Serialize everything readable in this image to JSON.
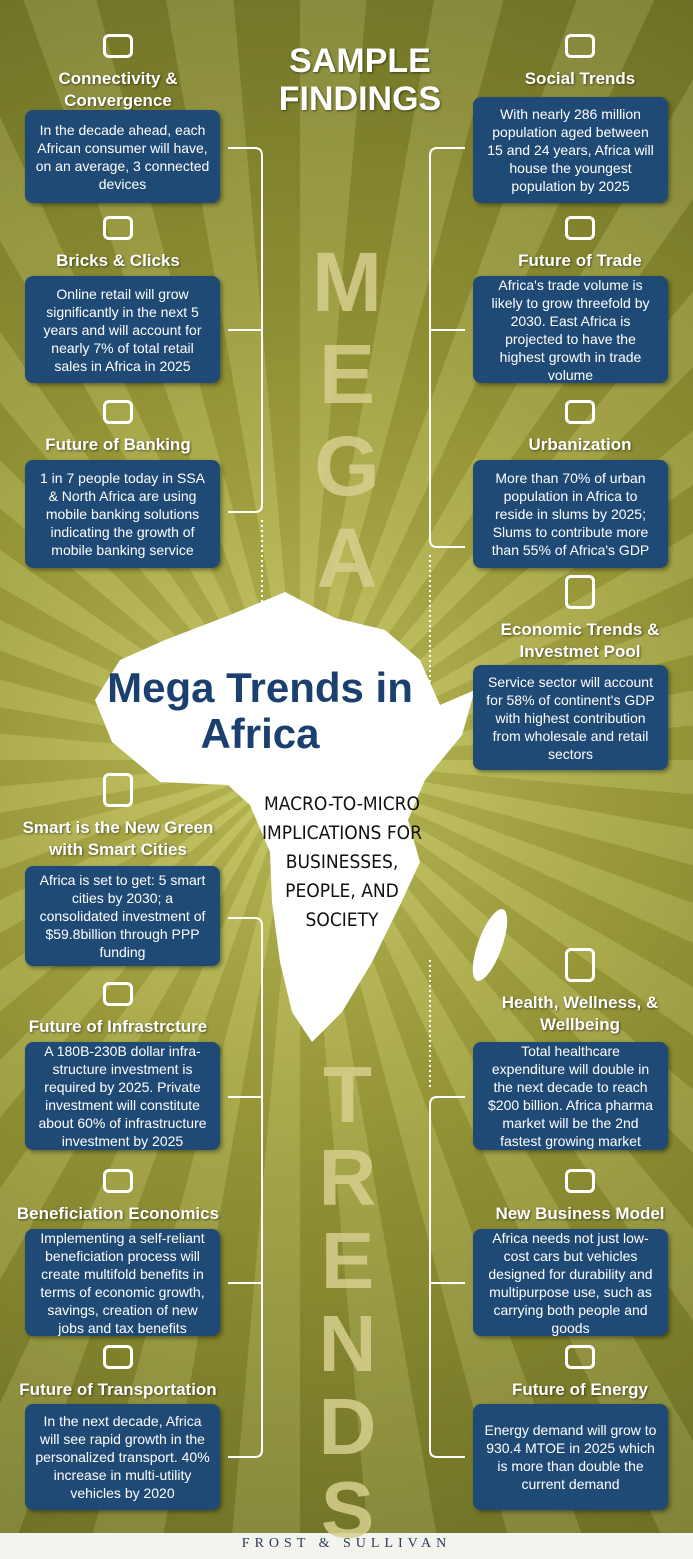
{
  "header": {
    "title": "SAMPLE FINDINGS"
  },
  "center": {
    "title": "Mega Trends in Africa",
    "subtitle": "MACRO-TO-MICRO IMPLICATIONS FOR BUSINESSES, PEOPLE, AND SOCIETY",
    "mega": "MEGA",
    "trends": "TRENDS"
  },
  "left": [
    {
      "heading": "Connectivity & Convergence",
      "text": "In the decade ahead, each African consumer will have, on an average, 3 connected devices"
    },
    {
      "heading": "Bricks & Clicks",
      "text": "Online retail will grow significantly in the next 5 years and will account for nearly 7% of total retail sales in Africa in 2025"
    },
    {
      "heading": "Future of Banking",
      "text": "1 in 7 people today in SSA & North Africa are using mobile banking solutions indicating the growth of mobile banking service"
    },
    {
      "heading": "Smart is the New Green with Smart Cities",
      "text": "Africa is set to get: 5 smart cities by 2030; a consolidated investment of $59.8billion through PPP funding"
    },
    {
      "heading": "Future of Infrastrcture",
      "text": "A 180B-230B dollar infra-structure investment is required by 2025. Private investment will constitute about 60% of infrastructure investment by 2025"
    },
    {
      "heading": "Beneficiation Economics",
      "text": "Implementing a self-reliant beneficiation process will create multifold benefits in terms of economic growth, savings, creation of new jobs and tax benefits"
    },
    {
      "heading": "Future of Transportation",
      "text": "In the next decade, Africa will see rapid growth in the personalized transport. 40% increase in multi-utility vehicles by 2020"
    }
  ],
  "right": [
    {
      "heading": "Social Trends",
      "text": "With nearly 286 million population aged between 15 and 24 years, Africa will house the youngest population by 2025"
    },
    {
      "heading": "Future of Trade",
      "text": "Africa's trade volume is likely to grow threefold by 2030. East Africa is projected to have the highest growth in trade volume"
    },
    {
      "heading": "Urbanization",
      "text": "More than 70% of urban population in Africa to reside in slums by 2025; Slums to contribute more than 55% of Africa's GDP"
    },
    {
      "heading": "Economic Trends & Investmet Pool",
      "text": "Service sector will account for 58% of continent's GDP with highest contribution from wholesale and retail sectors"
    },
    {
      "heading": "Health, Wellness, & Wellbeing",
      "text": "Total healthcare expenditure will double in the next decade to reach $200 billion. Africa pharma market will be the 2nd fastest growing market"
    },
    {
      "heading": "New Business Model",
      "text": "Africa needs not just low-cost cars but vehicles designed for durability and multipurpose use, such as carrying both people and goods"
    },
    {
      "heading": "Future of Energy",
      "text": "Energy demand will grow to 930.4 MTOE in 2025 which is more than double the current demand"
    }
  ],
  "footer": {
    "brand": "FROST & SULLIVAN"
  }
}
